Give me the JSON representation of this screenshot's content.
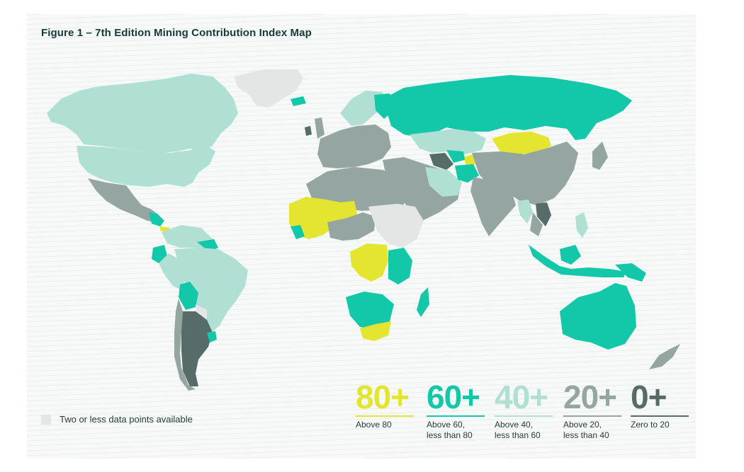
{
  "title": "Figure 1 – 7th Edition Mining Contribution Index Map",
  "colors": {
    "above_80": "#e3e531",
    "above_60": "#13c8a8",
    "above_40": "#b0dfd3",
    "above_20": "#95a5a2",
    "zero_to_20": "#576b69",
    "no_data": "#e4e6e6",
    "title": "#163a38"
  },
  "no_data_label": "Two or less data points available",
  "legend": [
    {
      "value": "80+",
      "lines": [
        "Above 80"
      ],
      "color": "#e3e531"
    },
    {
      "value": "60+",
      "lines": [
        "Above 60,",
        "less than 80"
      ],
      "color": "#13c8a8"
    },
    {
      "value": "40+",
      "lines": [
        "Above 40,",
        "less than 60"
      ],
      "color": "#b0dfd3"
    },
    {
      "value": "20+",
      "lines": [
        "Above 20,",
        "less than 40"
      ],
      "color": "#95a5a2"
    },
    {
      "value": "0+",
      "lines": [
        "Zero to 20"
      ],
      "color": "#576b69"
    }
  ]
}
